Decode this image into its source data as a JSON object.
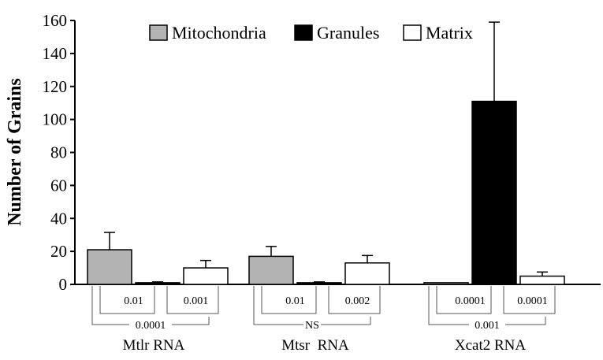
{
  "chart_data": {
    "type": "bar",
    "title": "",
    "xlabel": "",
    "ylabel": "Number of Grains",
    "ylim": [
      0,
      160
    ],
    "yticks": [
      0,
      20,
      40,
      60,
      80,
      100,
      120,
      140,
      160
    ],
    "grid": false,
    "legend_position": "top-center",
    "categories": [
      "Mtlr RNA",
      "Mtsr  RNA",
      "Xcat2 RNA"
    ],
    "series": [
      {
        "name": "Mitochondria",
        "color": "#b3b3b3",
        "values": [
          21,
          17,
          1
        ],
        "errors": [
          10.5,
          6,
          0
        ]
      },
      {
        "name": "Granules",
        "color": "#000000",
        "values": [
          1,
          1,
          111
        ],
        "errors": [
          0.5,
          0.5,
          48
        ]
      },
      {
        "name": "Matrix",
        "color": "#ffffff",
        "values": [
          10,
          13,
          5
        ],
        "errors": [
          4.5,
          4.5,
          2.5
        ]
      }
    ],
    "significance": [
      {
        "inner_left": "0.01",
        "inner_right": "0.001",
        "outer": "0.0001"
      },
      {
        "inner_left": "0.01",
        "inner_right": "0.002",
        "outer": "NS"
      },
      {
        "inner_left": "0.0001",
        "inner_right": "0.0001",
        "outer": "0.001"
      }
    ]
  }
}
